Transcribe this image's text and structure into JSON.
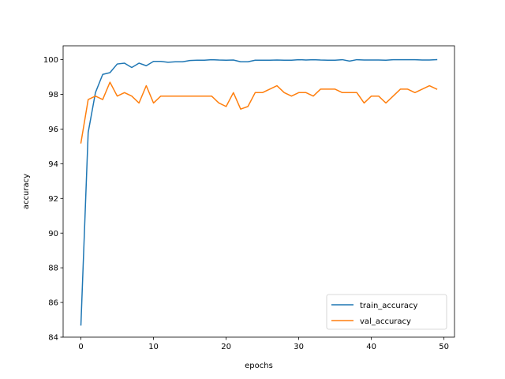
{
  "chart_data": {
    "type": "line",
    "title": "",
    "xlabel": "epochs",
    "ylabel": "accuracy",
    "xlim": [
      -2.45,
      51.45
    ],
    "ylim": [
      84.0,
      100.8
    ],
    "xticks": [
      0,
      10,
      20,
      30,
      40,
      50
    ],
    "yticks": [
      84,
      86,
      88,
      90,
      92,
      94,
      96,
      98,
      100
    ],
    "grid": false,
    "legend_position": "lower-right",
    "x": [
      0,
      1,
      2,
      3,
      4,
      5,
      6,
      7,
      8,
      9,
      10,
      11,
      12,
      13,
      14,
      15,
      16,
      17,
      18,
      19,
      20,
      21,
      22,
      23,
      24,
      25,
      26,
      27,
      28,
      29,
      30,
      31,
      32,
      33,
      34,
      35,
      36,
      37,
      38,
      39,
      40,
      41,
      42,
      43,
      44,
      45,
      46,
      47,
      48,
      49
    ],
    "series": [
      {
        "name": "train_accuracy",
        "color": "#1f77b4",
        "values": [
          84.7,
          95.8,
          98.1,
          99.15,
          99.25,
          99.75,
          99.8,
          99.55,
          99.8,
          99.65,
          99.9,
          99.9,
          99.85,
          99.88,
          99.88,
          99.95,
          99.97,
          99.97,
          100.0,
          99.98,
          99.97,
          99.98,
          99.88,
          99.88,
          99.97,
          99.97,
          99.97,
          99.98,
          99.97,
          99.97,
          100.0,
          99.98,
          100.0,
          99.98,
          99.97,
          99.97,
          100.0,
          99.92,
          100.0,
          99.98,
          99.98,
          99.98,
          99.97,
          100.0,
          100.0,
          100.0,
          100.0,
          99.98,
          99.98,
          100.0
        ]
      },
      {
        "name": "val_accuracy",
        "color": "#ff7f0e",
        "values": [
          95.2,
          97.7,
          97.9,
          97.7,
          98.7,
          97.9,
          98.1,
          97.9,
          97.5,
          98.5,
          97.5,
          97.9,
          97.9,
          97.9,
          97.9,
          97.9,
          97.9,
          97.9,
          97.9,
          97.5,
          97.3,
          98.1,
          97.15,
          97.3,
          98.1,
          98.1,
          98.3,
          98.5,
          98.1,
          97.9,
          98.1,
          98.1,
          97.9,
          98.3,
          98.3,
          98.3,
          98.1,
          98.1,
          98.1,
          97.5,
          97.9,
          97.9,
          97.5,
          97.9,
          98.3,
          98.3,
          98.1,
          98.3,
          98.5,
          98.3
        ]
      }
    ]
  }
}
